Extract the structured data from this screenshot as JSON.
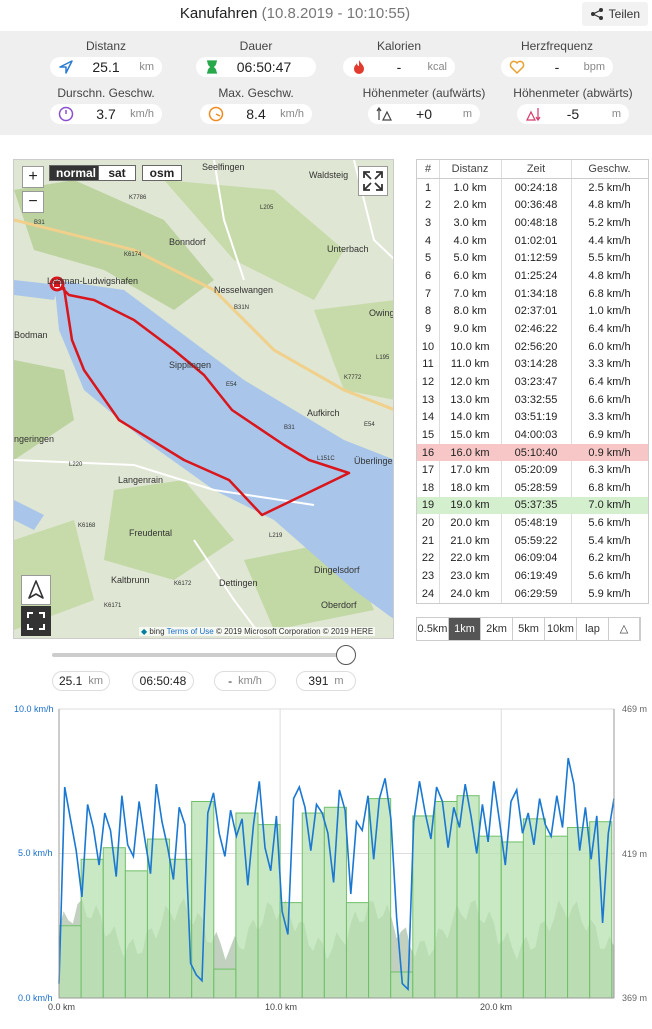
{
  "header": {
    "title": "Kanufahren",
    "timestamp": "(10.8.2019 - 10:10:55)",
    "share_label": "Teilen"
  },
  "stats": [
    {
      "label": "Distanz",
      "value": "25.1",
      "unit": "km",
      "icon": "navigation-arrow-icon"
    },
    {
      "label": "Dauer",
      "value": "06:50:47",
      "unit": "",
      "icon": "hourglass-icon"
    },
    {
      "label": "Kalorien",
      "value": "-",
      "unit": "kcal",
      "icon": "flame-icon"
    },
    {
      "label": "Herzfrequenz",
      "value": "-",
      "unit": "bpm",
      "icon": "heart-icon"
    },
    {
      "label": "Durschn. Geschw.",
      "value": "3.7",
      "unit": "km/h",
      "icon": "speedometer-icon"
    },
    {
      "label": "Max. Geschw.",
      "value": "8.4",
      "unit": "km/h",
      "icon": "speedometer-max-icon"
    },
    {
      "label": "Höhenmeter (aufwärts)",
      "value": "+0",
      "unit": "m",
      "icon": "ascent-icon"
    },
    {
      "label": "Höhenmeter (abwärts)",
      "value": "-5",
      "unit": "m",
      "icon": "descent-icon"
    }
  ],
  "map": {
    "zoom_in": "+",
    "zoom_out": "−",
    "types": [
      "normal",
      "sat",
      "osm"
    ],
    "active_type": "normal",
    "labels": [
      "Seelfingen",
      "Waldsteig",
      "Bonndorf",
      "Unterbach",
      "Ludman-Ludwigshafen",
      "Nesselwangen",
      "Owinge",
      "Bodman",
      "Sipplingen",
      "Aufkirch",
      "Überlingen",
      "Langenrain",
      "Freudental",
      "Kaltbrunn",
      "Dettingen",
      "Dingelsdorf",
      "Oberdorf",
      "ngeringen"
    ],
    "road_labels": [
      "K7786",
      "L205",
      "K6174",
      "B31N",
      "B31",
      "E54",
      "K7772",
      "L195",
      "L220",
      "K6168",
      "L219",
      "K6172",
      "K6171",
      "B31",
      "E54",
      "L151C"
    ],
    "footer_brand": "bing",
    "footer_link": "Terms of Use",
    "footer_copyright": "© 2019 Microsoft Corporation © 2019 HERE"
  },
  "table": {
    "headers": [
      "#",
      "Distanz",
      "Zeit",
      "Geschw."
    ],
    "rows": [
      [
        "1",
        "1.0 km",
        "00:24:18",
        "2.5 km/h"
      ],
      [
        "2",
        "2.0 km",
        "00:36:48",
        "4.8 km/h"
      ],
      [
        "3",
        "3.0 km",
        "00:48:18",
        "5.2 km/h"
      ],
      [
        "4",
        "4.0 km",
        "01:02:01",
        "4.4 km/h"
      ],
      [
        "5",
        "5.0 km",
        "01:12:59",
        "5.5 km/h"
      ],
      [
        "6",
        "6.0 km",
        "01:25:24",
        "4.8 km/h"
      ],
      [
        "7",
        "7.0 km",
        "01:34:18",
        "6.8 km/h"
      ],
      [
        "8",
        "8.0 km",
        "02:37:01",
        "1.0 km/h"
      ],
      [
        "9",
        "9.0 km",
        "02:46:22",
        "6.4 km/h"
      ],
      [
        "10",
        "10.0 km",
        "02:56:20",
        "6.0 km/h"
      ],
      [
        "11",
        "11.0 km",
        "03:14:28",
        "3.3 km/h"
      ],
      [
        "12",
        "12.0 km",
        "03:23:47",
        "6.4 km/h"
      ],
      [
        "13",
        "13.0 km",
        "03:32:55",
        "6.6 km/h"
      ],
      [
        "14",
        "14.0 km",
        "03:51:19",
        "3.3 km/h"
      ],
      [
        "15",
        "15.0 km",
        "04:00:03",
        "6.9 km/h"
      ],
      [
        "16",
        "16.0 km",
        "05:10:40",
        "0.9 km/h"
      ],
      [
        "17",
        "17.0 km",
        "05:20:09",
        "6.3 km/h"
      ],
      [
        "18",
        "18.0 km",
        "05:28:59",
        "6.8 km/h"
      ],
      [
        "19",
        "19.0 km",
        "05:37:35",
        "7.0 km/h"
      ],
      [
        "20",
        "20.0 km",
        "05:48:19",
        "5.6 km/h"
      ],
      [
        "21",
        "21.0 km",
        "05:59:22",
        "5.4 km/h"
      ],
      [
        "22",
        "22.0 km",
        "06:09:04",
        "6.2 km/h"
      ],
      [
        "23",
        "23.0 km",
        "06:19:49",
        "5.6 km/h"
      ],
      [
        "24",
        "24.0 km",
        "06:29:59",
        "5.9 km/h"
      ]
    ],
    "slowest_row": 16,
    "fastest_row": 19
  },
  "splits": {
    "options": [
      "0.5km",
      "1km",
      "2km",
      "5km",
      "10km",
      "lap",
      "△"
    ],
    "active": "1km"
  },
  "range": {
    "slider_position": 1.0,
    "distance": "25.1",
    "distance_unit": "km",
    "time": "06:50:48",
    "speed": "-",
    "speed_unit": "km/h",
    "elevation": "391",
    "elevation_unit": "m"
  },
  "colors": {
    "route": "#d9161c",
    "speed_line": "#1a78d2",
    "split_bars": "#b7e2b0",
    "elevation_area": "#8fa98a",
    "highlight_slow": "#f7c7c7",
    "highlight_fast": "#d3efcd"
  },
  "chart_data": {
    "type": "line",
    "xlabel": "",
    "ylabel": "",
    "x_ticks": [
      "0.0 km",
      "10.0 km",
      "20.0 km"
    ],
    "xlim": [
      0,
      25.1
    ],
    "y_left_ticks": [
      "10.0 km/h",
      "5.0 km/h",
      "0.0 km/h"
    ],
    "ylim_left": [
      0,
      10
    ],
    "y_right_ticks": [
      "469 m",
      "419 m",
      "369 m"
    ],
    "ylim_right": [
      369,
      469
    ],
    "split_bars_kmh": [
      2.5,
      4.8,
      5.2,
      4.4,
      5.5,
      4.8,
      6.8,
      1.0,
      6.4,
      6.0,
      3.3,
      6.4,
      6.6,
      3.3,
      6.9,
      0.9,
      6.3,
      6.8,
      7.0,
      5.6,
      5.4,
      6.2,
      5.6,
      5.9,
      6.1
    ],
    "speed_series_kmh": [
      0.5,
      7.3,
      6.2,
      5.1,
      3.5,
      6.7,
      5.9,
      4.6,
      6.4,
      5.8,
      4.2,
      7.0,
      5.3,
      4.9,
      6.8,
      5.5,
      4.3,
      7.4,
      6.1,
      5.2,
      4.1,
      6.6,
      6.0,
      1.2,
      0.8,
      0.6,
      6.4,
      7.1,
      5.7,
      4.9,
      6.5,
      5.6,
      6.2,
      3.9,
      6.0,
      7.5,
      5.2,
      4.4,
      6.3,
      3.0,
      2.2,
      6.9,
      7.3,
      6.6,
      5.1,
      6.7,
      6.4,
      5.7,
      4.0,
      7.2,
      6.5,
      3.6,
      6.1,
      5.8,
      7.0,
      4.8,
      6.9,
      7.6,
      6.2,
      2.8,
      0.5,
      0.3,
      6.1,
      7.5,
      6.4,
      5.5,
      7.3,
      6.8,
      5.2,
      6.6,
      5.9,
      7.4,
      6.3,
      5.0,
      6.7,
      5.4,
      7.5,
      6.1,
      4.6,
      6.8,
      7.2,
      5.7,
      6.4,
      5.3,
      6.9,
      6.0,
      5.6,
      7.0,
      5.9,
      8.3,
      7.4,
      5.1,
      6.6,
      4.8,
      6.3,
      2.6,
      5.7,
      6.9
    ]
  }
}
